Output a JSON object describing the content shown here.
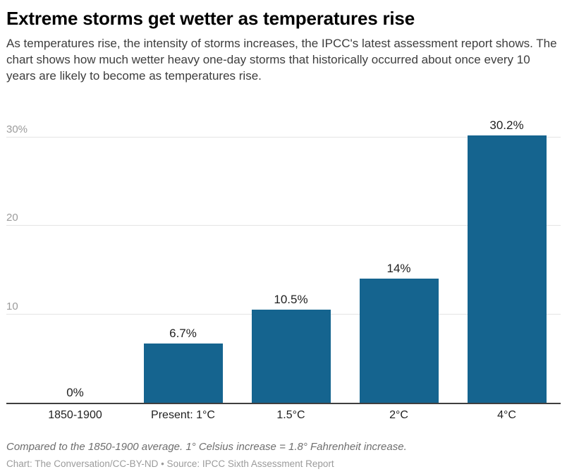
{
  "header": {
    "title": "Extreme storms get wetter as temperatures rise",
    "subtitle": "As temperatures rise, the intensity of storms increases, the IPCC's latest assessment report shows. The chart shows how much wetter heavy one-day storms that historically occurred about once every 10 years are likely to become as temperatures rise."
  },
  "chart_data": {
    "type": "bar",
    "title": "Extreme storms get wetter as temperatures rise",
    "categories": [
      "1850-1900",
      "Present: 1°C",
      "1.5°C",
      "2°C",
      "4°C"
    ],
    "values": [
      0,
      6.7,
      10.5,
      14,
      30.2
    ],
    "value_labels": [
      "0%",
      "6.7%",
      "10.5%",
      "14%",
      "30.2%"
    ],
    "xlabel": "",
    "ylabel": "",
    "ylim": [
      0,
      32.8
    ],
    "yticks": [
      {
        "value": 10,
        "label": "10"
      },
      {
        "value": 20,
        "label": "20"
      },
      {
        "value": 30,
        "label": "30%"
      }
    ],
    "grid": "horizontal",
    "legend": "none",
    "bar_color": "#15648f"
  },
  "footer": {
    "note": "Compared to the 1850-1900 average. 1° Celsius increase = 1.8° Fahrenheit increase.",
    "credit": "Chart: The Conversation/CC-BY-ND • Source: IPCC Sixth Assessment Report"
  },
  "colors": {
    "bar": "#15648f",
    "axis_line": "#3f3f3f",
    "gridline": "#e4e4e4",
    "ytick_text": "#9b9b9b",
    "title_text": "#000000",
    "subtitle_text": "#3d3d3d",
    "note_text": "#6e6e6e",
    "credit_text": "#9b9b9b"
  }
}
